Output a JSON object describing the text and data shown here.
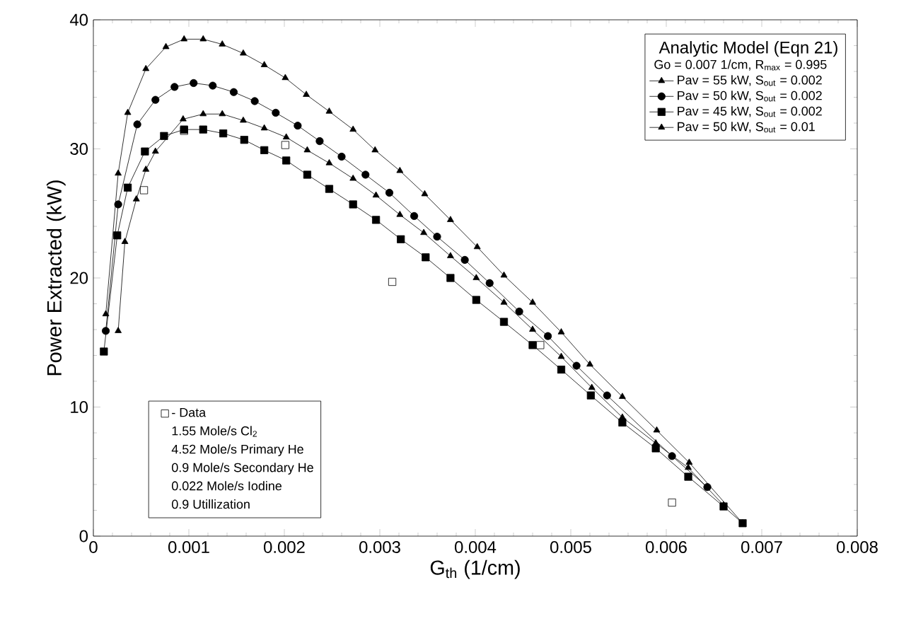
{
  "chart_data": {
    "type": "line",
    "xlabel": "G$_{th}$ (1/cm)",
    "ylabel": "Power Extracted (kW)",
    "legend_title": "Analytic Model (Eqn 21)",
    "annotations": [
      "Go = 0.007 1/cm, R$_{max}$ = 0.995",
      "1.55 Mole/s Cl$_{2}$",
      "4.52 Mole/s Primary He",
      "0.9 Mole/s Secondary He",
      "0.022 Mole/s Iodine",
      "0.9 Utillization"
    ],
    "xlim": [
      0,
      0.008
    ],
    "xticks": [
      0,
      0.001,
      0.002,
      0.003,
      0.004,
      0.005,
      0.006,
      0.007,
      0.008
    ],
    "ylim": [
      0,
      40
    ],
    "yticks": [
      0,
      10,
      20,
      30,
      40
    ],
    "grid": false,
    "legend": "top right",
    "line_style": "solid",
    "series": [
      {
        "name": "Pav = 55 kW, S$_{out}$ = 0.002",
        "color": "#000000",
        "marker": "triangle",
        "x": [
          0.00013,
          0.00026,
          0.00036,
          0.00055,
          0.00076,
          0.00095,
          0.00115,
          0.00135,
          0.00157,
          0.00179,
          0.00201,
          0.00223,
          0.00247,
          0.00272,
          0.00295,
          0.00321,
          0.00347,
          0.00374,
          0.00402,
          0.0043,
          0.0046,
          0.0049,
          0.0052,
          0.00554,
          0.0059,
          0.00624,
          0.0068
        ],
        "values": [
          17.2,
          28.1,
          32.8,
          36.2,
          37.9,
          38.5,
          38.5,
          38.1,
          37.4,
          36.5,
          35.5,
          34.2,
          32.9,
          31.5,
          29.9,
          28.3,
          26.5,
          24.5,
          22.4,
          20.2,
          18.1,
          15.8,
          13.3,
          10.8,
          8.2,
          5.7,
          1.0
        ]
      },
      {
        "name": "Pav = 50 kW, S$_{out}$ = 0.002",
        "color": "#000000",
        "marker": "circle",
        "x": [
          0.00013,
          0.00026,
          0.00046,
          0.00065,
          0.00085,
          0.00105,
          0.00125,
          0.00147,
          0.00169,
          0.00191,
          0.00214,
          0.00237,
          0.0026,
          0.00285,
          0.0031,
          0.00336,
          0.0036,
          0.00389,
          0.00415,
          0.00446,
          0.00476,
          0.00506,
          0.00538,
          0.00606,
          0.00643
        ],
        "values": [
          15.9,
          25.7,
          31.9,
          33.8,
          34.8,
          35.1,
          34.9,
          34.4,
          33.7,
          32.8,
          31.8,
          30.6,
          29.4,
          28.0,
          26.6,
          24.8,
          23.2,
          21.4,
          19.6,
          17.4,
          15.5,
          13.2,
          10.9,
          6.2,
          3.8
        ]
      },
      {
        "name": "Pav = 45 kW, S$_{out}$ = 0.002",
        "color": "#000000",
        "marker": "square",
        "x": [
          0.00011,
          0.00025,
          0.00036,
          0.00054,
          0.00074,
          0.00095,
          0.00115,
          0.00136,
          0.00158,
          0.00179,
          0.00202,
          0.00224,
          0.00247,
          0.00272,
          0.00296,
          0.00322,
          0.00348,
          0.00374,
          0.00401,
          0.0043,
          0.0046,
          0.0049,
          0.00521,
          0.00554,
          0.00589,
          0.00623,
          0.0066,
          0.0068
        ],
        "values": [
          14.3,
          23.3,
          27.0,
          29.8,
          31.0,
          31.5,
          31.5,
          31.2,
          30.7,
          29.9,
          29.1,
          28.0,
          26.9,
          25.7,
          24.5,
          23.0,
          21.6,
          20.0,
          18.3,
          16.6,
          14.8,
          12.9,
          10.9,
          8.8,
          6.8,
          4.6,
          2.3,
          1.0
        ]
      },
      {
        "name": "Pav = 50 kW, S$_{out}$ = 0.01",
        "color": "#000000",
        "marker": "triangle",
        "x": [
          0.00026,
          0.00033,
          0.00045,
          0.00055,
          0.00065,
          0.00094,
          0.00115,
          0.00135,
          0.00157,
          0.00179,
          0.00202,
          0.00224,
          0.00247,
          0.00272,
          0.00296,
          0.00321,
          0.00346,
          0.00374,
          0.00401,
          0.0043,
          0.0046,
          0.0049,
          0.00522,
          0.00554,
          0.00589,
          0.00623,
          0.0066
        ],
        "values": [
          15.9,
          22.8,
          26.1,
          28.4,
          29.8,
          32.3,
          32.7,
          32.7,
          32.2,
          31.6,
          30.9,
          29.9,
          28.9,
          27.7,
          26.4,
          24.9,
          23.5,
          21.7,
          20.0,
          18.1,
          16.0,
          13.9,
          11.5,
          9.2,
          7.2,
          5.3,
          2.4
        ]
      },
      {
        "name": "- Data",
        "type": "scatter",
        "color": "#000000",
        "marker": "square",
        "x": [
          0.00053,
          0.00095,
          0.00201,
          0.00313,
          0.00468,
          0.00606
        ],
        "values": [
          26.8,
          31.4,
          30.3,
          19.7,
          14.8,
          2.6
        ]
      }
    ]
  }
}
